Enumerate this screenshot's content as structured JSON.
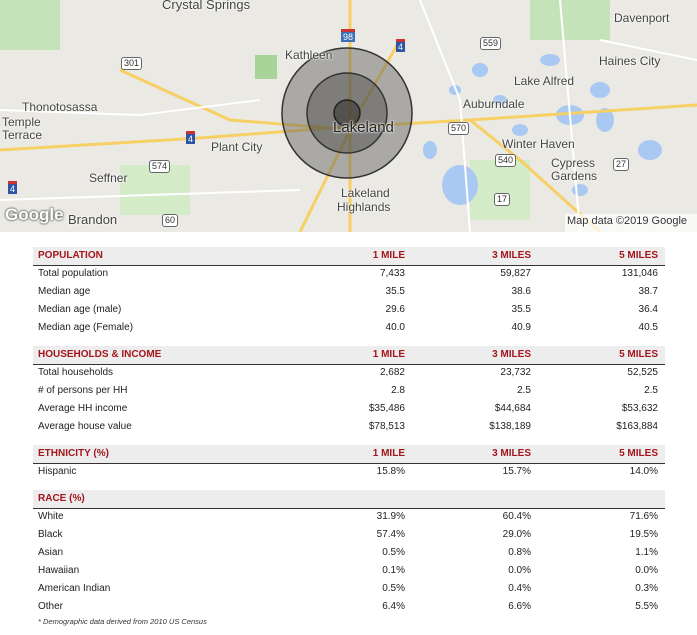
{
  "map": {
    "labels": [
      "Crystal Springs",
      "Davenport",
      "Kathleen",
      "Haines City",
      "Lake Alfred",
      "Thonotosassa",
      "Temple",
      "Terrace",
      "Auburndale",
      "Lakeland",
      "Plant City",
      "Winter Haven",
      "Cypress",
      "Gardens",
      "Seffner",
      "Brandon",
      "Lakeland",
      "Highlands",
      "Google",
      "Map data ©2019 Google",
      "98",
      "4",
      "559",
      "301",
      "4",
      "570",
      "574",
      "540",
      "27",
      "4",
      "17",
      "60"
    ]
  },
  "table": {
    "sections": [
      {
        "title": "POPULATION",
        "columns": [
          "1 MILE",
          "3 MILES",
          "5 MILES"
        ],
        "rows": [
          [
            "Total population",
            "7,433",
            "59,827",
            "131,046"
          ],
          [
            "Median age",
            "35.5",
            "38.6",
            "38.7"
          ],
          [
            "Median age (male)",
            "29.6",
            "35.5",
            "36.4"
          ],
          [
            "Median age (Female)",
            "40.0",
            "40.9",
            "40.5"
          ]
        ]
      },
      {
        "title": "HOUSEHOLDS & INCOME",
        "columns": [
          "1 MILE",
          "3 MILES",
          "5 MILES"
        ],
        "rows": [
          [
            "Total households",
            "2,682",
            "23,732",
            "52,525"
          ],
          [
            "# of persons per HH",
            "2.8",
            "2.5",
            "2.5"
          ],
          [
            "Average HH income",
            "$35,486",
            "$44,684",
            "$53,632"
          ],
          [
            "Average house value",
            "$78,513",
            "$138,189",
            "$163,884"
          ]
        ]
      },
      {
        "title": "ETHNICITY (%)",
        "columns": [
          "1 MILE",
          "3 MILES",
          "5 MILES"
        ],
        "rows": [
          [
            "Hispanic",
            "15.8%",
            "15.7%",
            "14.0%"
          ]
        ]
      },
      {
        "title": "RACE (%)",
        "rows": [
          [
            "White",
            "31.9%",
            "60.4%",
            "71.6%"
          ],
          [
            "Black",
            "57.4%",
            "29.0%",
            "19.5%"
          ],
          [
            "Asian",
            "0.5%",
            "0.8%",
            "1.1%"
          ],
          [
            "Hawaiian",
            "0.1%",
            "0.0%",
            "0.0%"
          ],
          [
            "American Indian",
            "0.5%",
            "0.4%",
            "0.3%"
          ],
          [
            "Other",
            "6.4%",
            "6.6%",
            "5.5%"
          ]
        ]
      }
    ]
  },
  "footnote": "* Demographic data derived from 2010 US Census"
}
